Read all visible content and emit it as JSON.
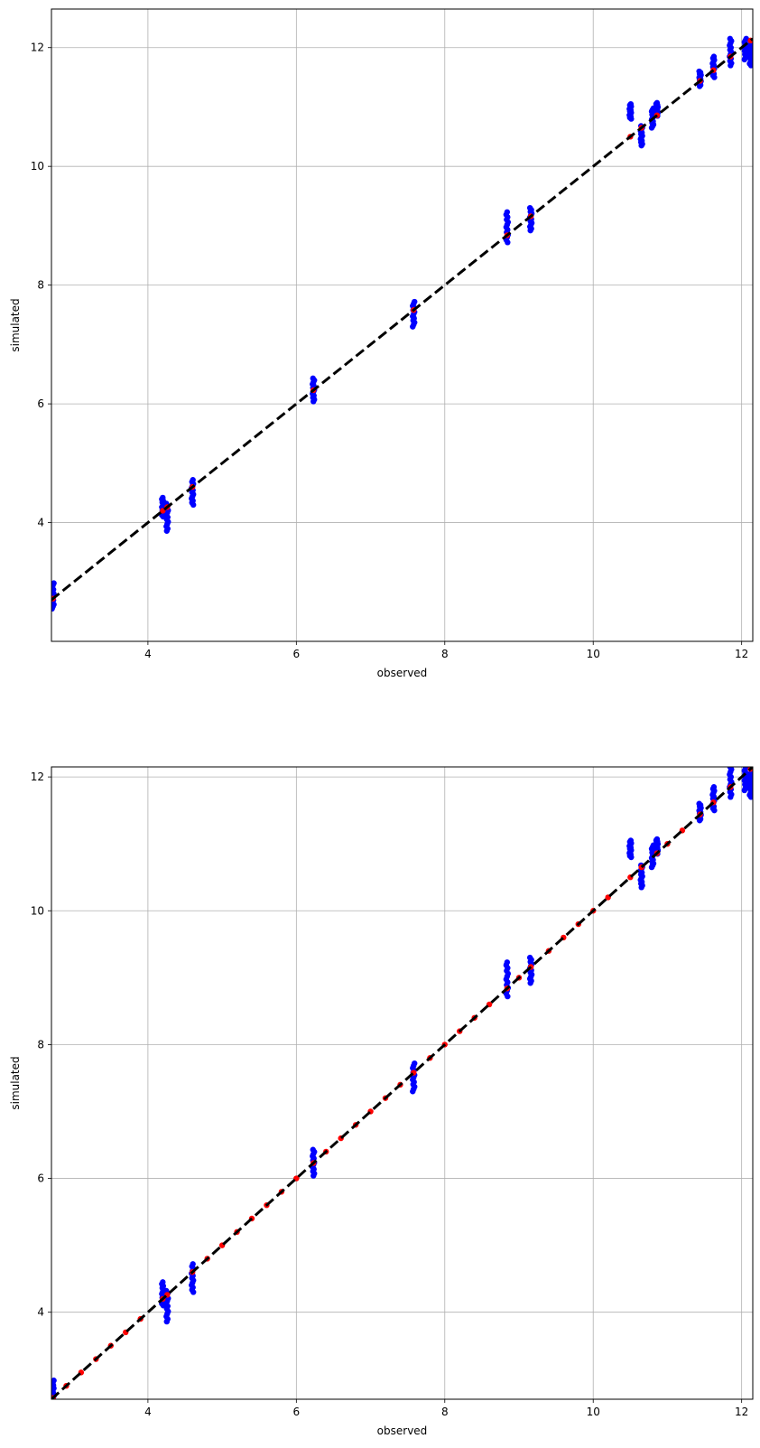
{
  "chart_data": [
    {
      "type": "scatter",
      "xlabel": "observed",
      "ylabel": "simulated",
      "xlim": [
        2.7,
        12.15
      ],
      "ylim": [
        2.0,
        12.65
      ],
      "xticks": [
        4,
        6,
        8,
        10,
        12
      ],
      "yticks": [
        4,
        6,
        8,
        10,
        12
      ],
      "grid": true,
      "reference_line": {
        "style": "dashed",
        "color": "#000000",
        "from": [
          2.7,
          2.7
        ],
        "to": [
          12.15,
          12.15
        ]
      },
      "colors": {
        "simulated_points": "#0000ff",
        "mean_points": "#ff0000"
      },
      "series": [
        {
          "groups": [
            {
              "x": 2.72,
              "y_min": 2.55,
              "y_max": 2.98
            },
            {
              "x": 4.2,
              "y_min": 4.1,
              "y_max": 4.42
            },
            {
              "x": 4.26,
              "y_min": 3.86,
              "y_max": 4.32
            },
            {
              "x": 4.6,
              "y_min": 4.3,
              "y_max": 4.72
            },
            {
              "x": 6.23,
              "y_min": 6.04,
              "y_max": 6.43
            },
            {
              "x": 7.58,
              "y_min": 7.3,
              "y_max": 7.72
            },
            {
              "x": 8.84,
              "y_min": 8.72,
              "y_max": 9.23
            },
            {
              "x": 9.16,
              "y_min": 8.92,
              "y_max": 9.3
            },
            {
              "x": 10.5,
              "y_min": 10.8,
              "y_max": 11.05
            },
            {
              "x": 10.65,
              "y_min": 10.35,
              "y_max": 10.68
            },
            {
              "x": 10.8,
              "y_min": 10.65,
              "y_max": 10.98
            },
            {
              "x": 10.86,
              "y_min": 10.85,
              "y_max": 11.07
            },
            {
              "x": 11.44,
              "y_min": 11.35,
              "y_max": 11.6
            },
            {
              "x": 11.62,
              "y_min": 11.5,
              "y_max": 11.85
            },
            {
              "x": 11.85,
              "y_min": 11.7,
              "y_max": 12.15
            },
            {
              "x": 12.05,
              "y_min": 11.8,
              "y_max": 12.15
            },
            {
              "x": 12.12,
              "y_min": 11.7,
              "y_max": 12.05
            }
          ]
        },
        {
          "points": [
            [
              2.72,
              2.72
            ],
            [
              4.2,
              4.2
            ],
            [
              4.26,
              4.26
            ],
            [
              4.6,
              4.6
            ],
            [
              6.23,
              6.23
            ],
            [
              7.58,
              7.58
            ],
            [
              8.84,
              8.84
            ],
            [
              9.16,
              9.16
            ],
            [
              10.5,
              10.5
            ],
            [
              10.65,
              10.65
            ],
            [
              10.86,
              10.86
            ],
            [
              11.44,
              11.44
            ],
            [
              11.62,
              11.62
            ],
            [
              11.85,
              11.85
            ],
            [
              12.12,
              12.12
            ]
          ]
        }
      ]
    },
    {
      "type": "scatter",
      "xlabel": "observed",
      "ylabel": "simulated",
      "xlim": [
        2.7,
        12.15
      ],
      "ylim": [
        2.7,
        12.15
      ],
      "xticks": [
        4,
        6,
        8,
        10,
        12
      ],
      "yticks": [
        4,
        6,
        8,
        10,
        12
      ],
      "grid": true,
      "reference_line": {
        "style": "dashed",
        "color": "#000000",
        "from": [
          2.7,
          2.7
        ],
        "to": [
          12.15,
          12.15
        ]
      },
      "colors": {
        "simulated_points": "#0000ff",
        "mean_points": "#ff0000"
      },
      "series": [
        {
          "groups": [
            {
              "x": 2.72,
              "y_min": 2.7,
              "y_max": 2.98
            },
            {
              "x": 4.2,
              "y_min": 4.1,
              "y_max": 4.45
            },
            {
              "x": 4.26,
              "y_min": 3.86,
              "y_max": 4.32
            },
            {
              "x": 4.6,
              "y_min": 4.3,
              "y_max": 4.72
            },
            {
              "x": 6.23,
              "y_min": 6.04,
              "y_max": 6.43
            },
            {
              "x": 7.58,
              "y_min": 7.3,
              "y_max": 7.72
            },
            {
              "x": 8.84,
              "y_min": 8.72,
              "y_max": 9.23
            },
            {
              "x": 9.16,
              "y_min": 8.92,
              "y_max": 9.3
            },
            {
              "x": 10.5,
              "y_min": 10.8,
              "y_max": 11.05
            },
            {
              "x": 10.65,
              "y_min": 10.35,
              "y_max": 10.68
            },
            {
              "x": 10.8,
              "y_min": 10.65,
              "y_max": 10.98
            },
            {
              "x": 10.86,
              "y_min": 10.85,
              "y_max": 11.07
            },
            {
              "x": 11.44,
              "y_min": 11.35,
              "y_max": 11.6
            },
            {
              "x": 11.62,
              "y_min": 11.5,
              "y_max": 11.85
            },
            {
              "x": 11.85,
              "y_min": 11.7,
              "y_max": 12.15
            },
            {
              "x": 12.05,
              "y_min": 11.8,
              "y_max": 12.15
            },
            {
              "x": 12.12,
              "y_min": 11.7,
              "y_max": 12.05
            }
          ]
        },
        {
          "points": [
            [
              2.72,
              2.72
            ],
            [
              2.9,
              2.9
            ],
            [
              3.1,
              3.1
            ],
            [
              3.3,
              3.3
            ],
            [
              3.5,
              3.5
            ],
            [
              3.7,
              3.7
            ],
            [
              3.9,
              3.9
            ],
            [
              4.2,
              4.2
            ],
            [
              4.26,
              4.26
            ],
            [
              4.6,
              4.6
            ],
            [
              4.8,
              4.8
            ],
            [
              5.0,
              5.0
            ],
            [
              5.2,
              5.2
            ],
            [
              5.4,
              5.4
            ],
            [
              5.6,
              5.6
            ],
            [
              5.8,
              5.8
            ],
            [
              6.0,
              6.0
            ],
            [
              6.23,
              6.23
            ],
            [
              6.4,
              6.4
            ],
            [
              6.6,
              6.6
            ],
            [
              6.8,
              6.8
            ],
            [
              7.0,
              7.0
            ],
            [
              7.2,
              7.2
            ],
            [
              7.4,
              7.4
            ],
            [
              7.58,
              7.58
            ],
            [
              7.8,
              7.8
            ],
            [
              8.0,
              8.0
            ],
            [
              8.2,
              8.2
            ],
            [
              8.4,
              8.4
            ],
            [
              8.6,
              8.6
            ],
            [
              8.84,
              8.84
            ],
            [
              9.0,
              9.0
            ],
            [
              9.16,
              9.16
            ],
            [
              9.4,
              9.4
            ],
            [
              9.6,
              9.6
            ],
            [
              9.8,
              9.8
            ],
            [
              10.0,
              10.0
            ],
            [
              10.2,
              10.2
            ],
            [
              10.5,
              10.5
            ],
            [
              10.65,
              10.65
            ],
            [
              10.86,
              10.86
            ],
            [
              11.0,
              11.0
            ],
            [
              11.2,
              11.2
            ],
            [
              11.44,
              11.44
            ],
            [
              11.62,
              11.62
            ],
            [
              11.85,
              11.85
            ],
            [
              12.12,
              12.12
            ]
          ]
        }
      ]
    }
  ]
}
